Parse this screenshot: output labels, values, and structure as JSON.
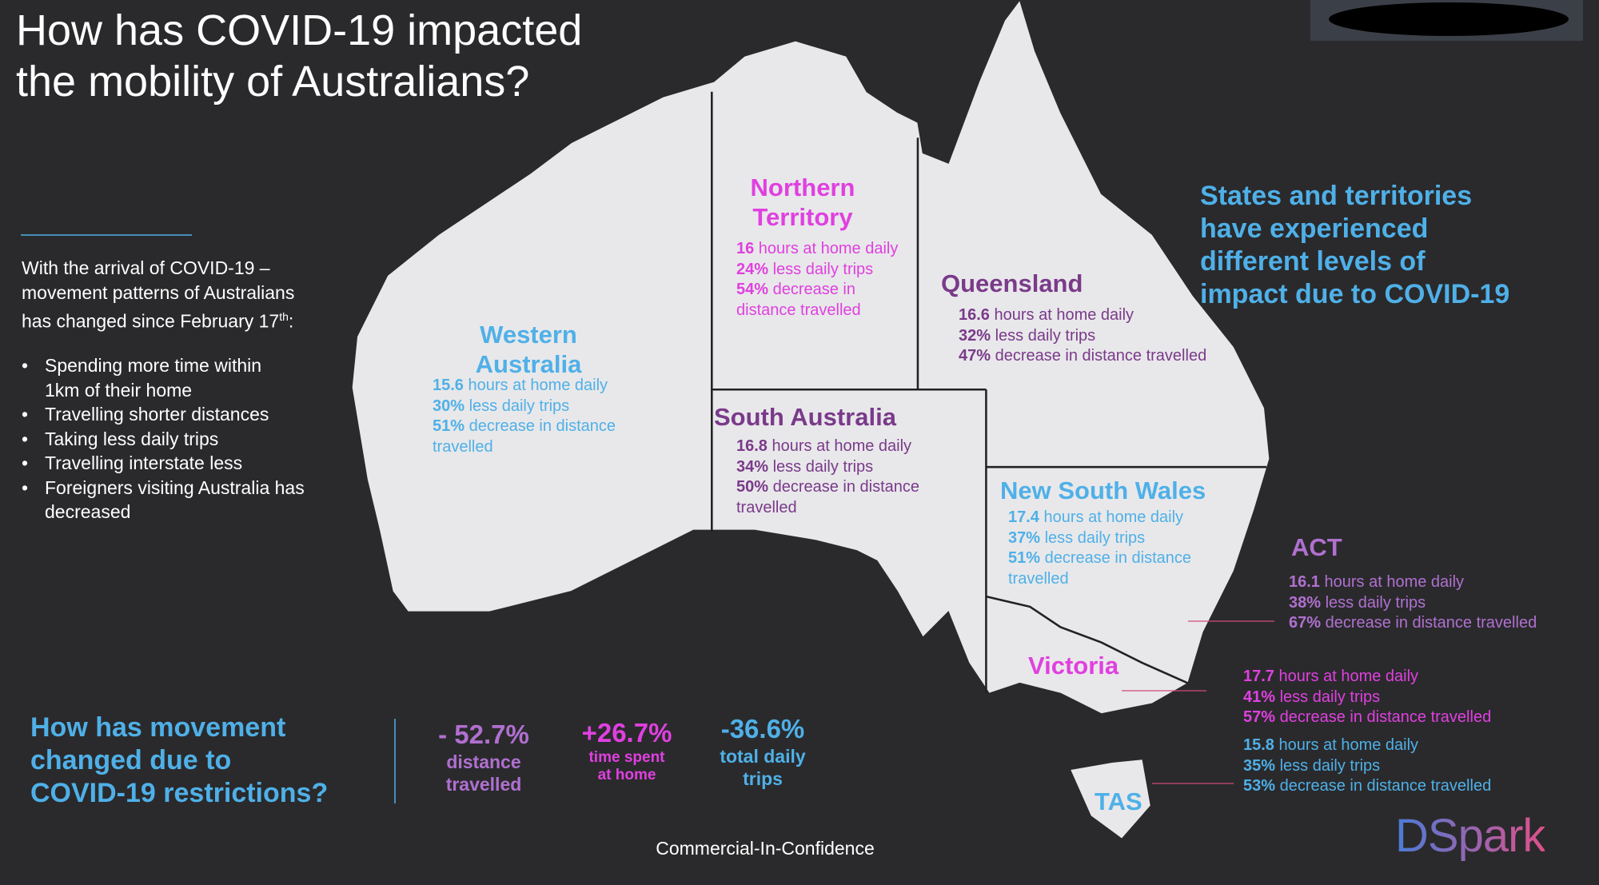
{
  "header": {
    "title": [
      "How has COVID-19 impacted",
      "the mobility of Australians?"
    ]
  },
  "intro": {
    "text": [
      "With the arrival of COVID-19 –",
      "movement patterns  of Australians",
      "has changed since February 17"
    ],
    "superscript": "th",
    "suffix": ":"
  },
  "bullets": [
    [
      "Spending more time within",
      "1km of their home"
    ],
    [
      "Travelling shorter distances"
    ],
    [
      "Taking less daily trips"
    ],
    [
      "Travelling interstate less"
    ],
    [
      "Foreigners visiting Australia has",
      "decreased"
    ]
  ],
  "side_heading": [
    "States and territories",
    "have experienced",
    "different levels of",
    "impact due to COVID-19"
  ],
  "states": [
    {
      "name": [
        "Western",
        "Australia"
      ],
      "lines": [
        [
          "15.6",
          " hours at home daily"
        ],
        [
          "30%",
          " less daily trips"
        ],
        [
          "51%",
          " decrease in distance"
        ],
        [
          "",
          "travelled"
        ]
      ]
    },
    {
      "name": [
        "Northern",
        "Territory"
      ],
      "lines": [
        [
          "16",
          " hours at home daily"
        ],
        [
          "24%",
          " less daily trips"
        ],
        [
          "54%",
          " decrease in"
        ],
        [
          "",
          "distance travelled"
        ]
      ]
    },
    {
      "name": [
        "Queensland"
      ],
      "lines": [
        [
          "16.6",
          " hours at home daily"
        ],
        [
          "32%",
          " less daily trips"
        ],
        [
          "47%",
          " decrease in distance travelled"
        ]
      ]
    },
    {
      "name": [
        "South Australia"
      ],
      "lines": [
        [
          "16.8",
          " hours at home daily"
        ],
        [
          "34%",
          " less daily trips"
        ],
        [
          "50%",
          " decrease in distance"
        ],
        [
          "",
          "travelled"
        ]
      ]
    },
    {
      "name": [
        "New South Wales"
      ],
      "lines": [
        [
          "17.4",
          " hours at home daily"
        ],
        [
          "37%",
          " less daily trips"
        ],
        [
          "51%",
          " decrease in distance"
        ],
        [
          "",
          "travelled"
        ]
      ]
    },
    {
      "name": [
        "ACT"
      ],
      "lines": [
        [
          "16.1",
          " hours at home daily"
        ],
        [
          "38%",
          " less daily trips"
        ],
        [
          "67%",
          " decrease in distance travelled"
        ]
      ]
    },
    {
      "name": [
        "Victoria"
      ],
      "lines": [
        [
          "17.7",
          " hours at home daily"
        ],
        [
          "41%",
          " less daily trips"
        ],
        [
          "57%",
          " decrease in distance travelled"
        ]
      ]
    },
    {
      "name": [
        "TAS"
      ],
      "lines": [
        [
          "15.8",
          " hours at home daily"
        ],
        [
          "35%",
          " less daily trips"
        ],
        [
          "53%",
          " decrease in distance travelled"
        ]
      ]
    }
  ],
  "question": [
    "How has movement",
    "changed due to",
    "COVID-19 restrictions?"
  ],
  "stats": [
    {
      "value": "- 52.7%",
      "label": [
        "distance",
        "travelled"
      ]
    },
    {
      "value": "+26.7%",
      "label": [
        "time spent",
        "at home"
      ]
    },
    {
      "value": "-36.6%",
      "label": [
        "total daily",
        "trips"
      ]
    }
  ],
  "footer": "Commercial-In-Confidence",
  "logo": "DSpark"
}
